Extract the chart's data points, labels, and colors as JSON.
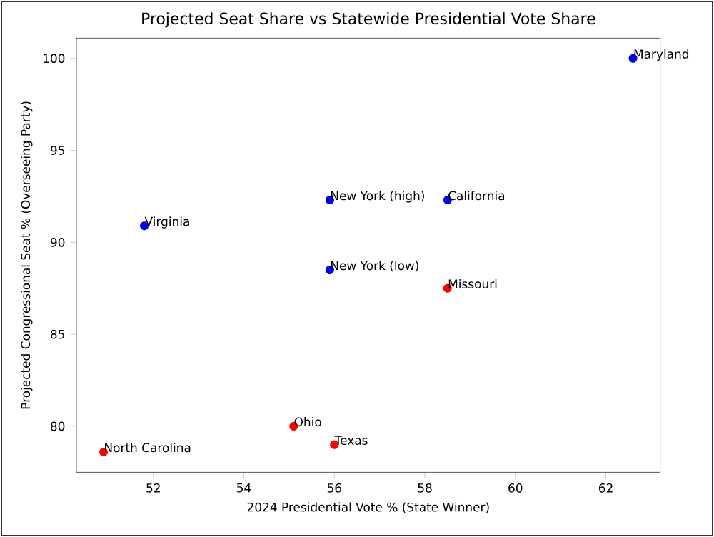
{
  "chart_data": {
    "type": "scatter",
    "title": "Projected Seat Share vs Statewide Presidential Vote Share",
    "xlabel": "2024 Presidential Vote % (State Winner)",
    "ylabel": "Projected Congressional Seat % (Overseeing Party)",
    "series": [
      {
        "color": "#0000ff",
        "x": [
          62.6,
          51.8,
          55.9,
          58.5,
          55.9
        ],
        "values": [
          100,
          90.9,
          92.3,
          92.3,
          88.5
        ]
      },
      {
        "color": "#ff0000",
        "x": [
          58.5,
          55.1,
          56.0,
          50.9
        ],
        "values": [
          87.5,
          80,
          79.0,
          78.6
        ]
      }
    ],
    "annotations": [
      {
        "text": "Maryland",
        "x": 62.6,
        "y": 100
      },
      {
        "text": "Virginia",
        "x": 51.8,
        "y": 90.9
      },
      {
        "text": "New York (high)",
        "x": 55.9,
        "y": 92.3
      },
      {
        "text": "California",
        "x": 58.5,
        "y": 92.3
      },
      {
        "text": "New York (low)",
        "x": 55.9,
        "y": 88.5
      },
      {
        "text": "Missouri",
        "x": 58.5,
        "y": 87.5
      },
      {
        "text": "Ohio",
        "x": 55.1,
        "y": 80
      },
      {
        "text": "Texas",
        "x": 56.0,
        "y": 79.0
      },
      {
        "text": "North Carolina",
        "x": 50.9,
        "y": 78.6
      }
    ],
    "marker": "circle",
    "xlim": [
      50.3,
      63.2
    ],
    "ylim": [
      77.5,
      101.1
    ],
    "xticks": [
      52,
      54,
      56,
      58,
      60,
      62
    ],
    "yticks": [
      80,
      85,
      90,
      95,
      100
    ]
  }
}
